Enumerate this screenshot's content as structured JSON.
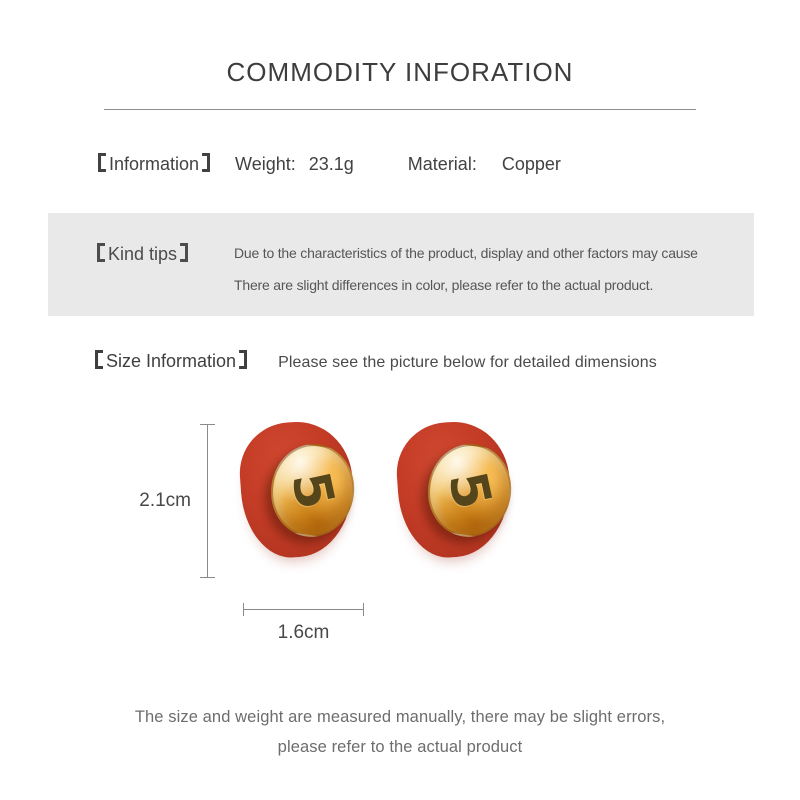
{
  "title": "COMMODITY INFORATION",
  "info": {
    "label": "Information",
    "weight_label": "Weight:",
    "weight_value": "23.1g",
    "material_label": "Material:",
    "material_value": "Copper"
  },
  "kind_tips": {
    "label": "Kind tips",
    "line1": "Due to the characteristics of the product, display and other factors may cause",
    "line2": "There are slight differences in color, please refer to the actual product."
  },
  "size_info": {
    "label": "Size Information",
    "text": "Please see the picture below for detailed dimensions"
  },
  "diagram": {
    "height_label": "2.1cm",
    "width_label": "1.6cm",
    "numeral": "5"
  },
  "footer": {
    "line1": "The size and weight are measured manually, there may be slight errors,",
    "line2": "please refer to the actual product"
  },
  "style": {
    "bracket_glyphs": "【】",
    "colors": {
      "earring_red": "#c43c26",
      "earring_gold": "#f2bf5a",
      "tips_box_bg": "#e9e9e9",
      "dimension_line": "#8a8a8a"
    }
  }
}
